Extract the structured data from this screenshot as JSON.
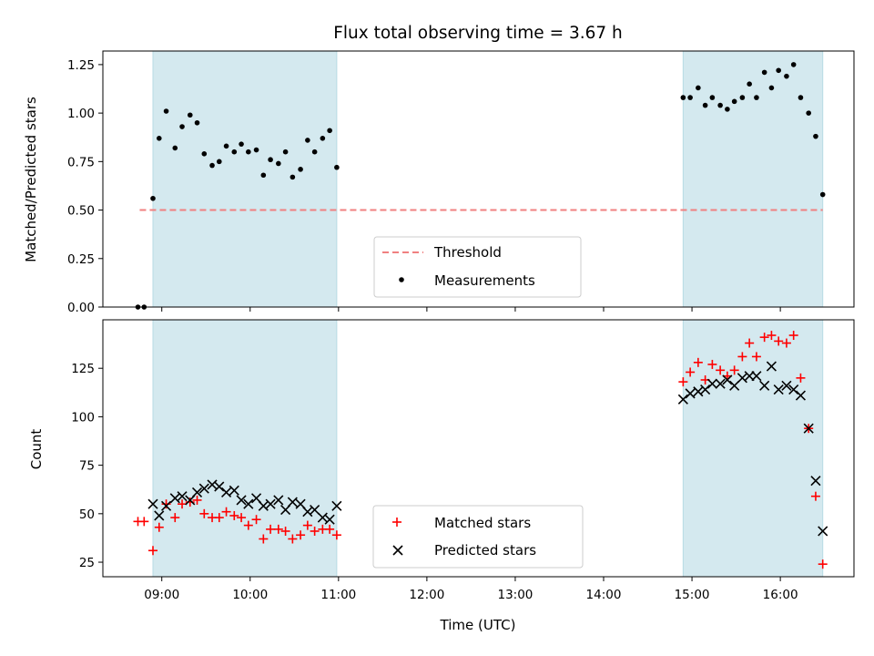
{
  "chart_data": [
    {
      "type": "scatter",
      "title": "Flux total observing time = 3.67 h",
      "xlabel": "",
      "ylabel": "Matched/Predicted stars",
      "x_unit": "hours (UTC)",
      "xlim": [
        8.3333,
        16.8333
      ],
      "ylim": [
        0.0,
        1.32
      ],
      "yticks": [
        0.0,
        0.25,
        0.5,
        0.75,
        1.0,
        1.25
      ],
      "ytick_labels": [
        "0.00",
        "0.25",
        "0.50",
        "0.75",
        "1.00",
        "1.25"
      ],
      "xticks": [
        9,
        10,
        11,
        12,
        13,
        14,
        15,
        16
      ],
      "xtick_labels": [
        "",
        "",
        "",
        "",
        "",
        "",
        "",
        ""
      ],
      "shaded_spans": [
        [
          8.9,
          10.98
        ],
        [
          14.9,
          16.48
        ]
      ],
      "shade_color": "#d4e9ef",
      "threshold": {
        "name": "Threshold",
        "value": 0.5,
        "x_range": [
          8.75,
          16.48
        ],
        "color": "#f08080",
        "style": "dashed"
      },
      "series": [
        {
          "name": "Measurements",
          "marker": "dot",
          "color": "#000000",
          "points": [
            [
              8.73,
              0.0
            ],
            [
              8.8,
              0.0
            ],
            [
              8.9,
              0.56
            ],
            [
              8.97,
              0.87
            ],
            [
              9.05,
              1.01
            ],
            [
              9.15,
              0.82
            ],
            [
              9.23,
              0.93
            ],
            [
              9.32,
              0.99
            ],
            [
              9.4,
              0.95
            ],
            [
              9.48,
              0.79
            ],
            [
              9.57,
              0.73
            ],
            [
              9.65,
              0.75
            ],
            [
              9.73,
              0.83
            ],
            [
              9.82,
              0.8
            ],
            [
              9.9,
              0.84
            ],
            [
              9.98,
              0.8
            ],
            [
              10.07,
              0.81
            ],
            [
              10.15,
              0.68
            ],
            [
              10.23,
              0.76
            ],
            [
              10.32,
              0.74
            ],
            [
              10.4,
              0.8
            ],
            [
              10.48,
              0.67
            ],
            [
              10.57,
              0.71
            ],
            [
              10.65,
              0.86
            ],
            [
              10.73,
              0.8
            ],
            [
              10.82,
              0.87
            ],
            [
              10.9,
              0.91
            ],
            [
              10.98,
              0.72
            ],
            [
              14.9,
              1.08
            ],
            [
              14.98,
              1.08
            ],
            [
              15.07,
              1.13
            ],
            [
              15.15,
              1.04
            ],
            [
              15.23,
              1.08
            ],
            [
              15.32,
              1.04
            ],
            [
              15.4,
              1.02
            ],
            [
              15.48,
              1.06
            ],
            [
              15.57,
              1.08
            ],
            [
              15.65,
              1.15
            ],
            [
              15.73,
              1.08
            ],
            [
              15.82,
              1.21
            ],
            [
              15.9,
              1.13
            ],
            [
              15.98,
              1.22
            ],
            [
              16.07,
              1.19
            ],
            [
              16.15,
              1.25
            ],
            [
              16.23,
              1.08
            ],
            [
              16.32,
              1.0
            ],
            [
              16.4,
              0.88
            ],
            [
              16.48,
              0.58
            ]
          ]
        }
      ],
      "legend": {
        "placement": "lower center",
        "entries": [
          "Threshold",
          "Measurements"
        ]
      }
    },
    {
      "type": "scatter",
      "title": "",
      "xlabel": "Time (UTC)",
      "ylabel": "Count",
      "x_unit": "hours (UTC)",
      "xlim": [
        8.3333,
        16.8333
      ],
      "ylim": [
        17.5,
        150.0
      ],
      "yticks": [
        25,
        50,
        75,
        100,
        125
      ],
      "ytick_labels": [
        "25",
        "50",
        "75",
        "100",
        "125"
      ],
      "xticks": [
        9,
        10,
        11,
        12,
        13,
        14,
        15,
        16
      ],
      "xtick_labels": [
        "09:00",
        "10:00",
        "11:00",
        "12:00",
        "13:00",
        "14:00",
        "15:00",
        "16:00"
      ],
      "shaded_spans": [
        [
          8.9,
          10.98
        ],
        [
          14.9,
          16.48
        ]
      ],
      "shade_color": "#d4e9ef",
      "series": [
        {
          "name": "Matched stars",
          "marker": "plus",
          "color": "#ff0000",
          "points": [
            [
              8.73,
              46
            ],
            [
              8.8,
              46
            ],
            [
              8.9,
              31
            ],
            [
              8.97,
              43
            ],
            [
              9.05,
              55
            ],
            [
              9.15,
              48
            ],
            [
              9.23,
              55
            ],
            [
              9.32,
              56
            ],
            [
              9.4,
              57
            ],
            [
              9.48,
              50
            ],
            [
              9.57,
              48
            ],
            [
              9.65,
              48
            ],
            [
              9.73,
              51
            ],
            [
              9.82,
              49
            ],
            [
              9.9,
              48
            ],
            [
              9.98,
              44
            ],
            [
              10.07,
              47
            ],
            [
              10.15,
              37
            ],
            [
              10.23,
              42
            ],
            [
              10.32,
              42
            ],
            [
              10.4,
              41
            ],
            [
              10.48,
              37
            ],
            [
              10.57,
              39
            ],
            [
              10.65,
              44
            ],
            [
              10.73,
              41
            ],
            [
              10.82,
              42
            ],
            [
              10.9,
              42
            ],
            [
              10.98,
              39
            ],
            [
              14.9,
              118
            ],
            [
              14.98,
              123
            ],
            [
              15.07,
              128
            ],
            [
              15.15,
              119
            ],
            [
              15.23,
              127
            ],
            [
              15.32,
              124
            ],
            [
              15.4,
              121
            ],
            [
              15.48,
              124
            ],
            [
              15.57,
              131
            ],
            [
              15.65,
              138
            ],
            [
              15.73,
              131
            ],
            [
              15.82,
              141
            ],
            [
              15.9,
              142
            ],
            [
              15.98,
              139
            ],
            [
              16.07,
              138
            ],
            [
              16.15,
              142
            ],
            [
              16.23,
              120
            ],
            [
              16.32,
              94
            ],
            [
              16.4,
              59
            ],
            [
              16.48,
              24
            ]
          ]
        },
        {
          "name": "Predicted stars",
          "marker": "x",
          "color": "#000000",
          "points": [
            [
              8.9,
              55
            ],
            [
              8.97,
              49
            ],
            [
              9.05,
              54
            ],
            [
              9.15,
              58
            ],
            [
              9.23,
              59
            ],
            [
              9.32,
              57
            ],
            [
              9.4,
              61
            ],
            [
              9.48,
              63
            ],
            [
              9.57,
              65
            ],
            [
              9.65,
              64
            ],
            [
              9.73,
              61
            ],
            [
              9.82,
              62
            ],
            [
              9.9,
              57
            ],
            [
              9.98,
              55
            ],
            [
              10.07,
              58
            ],
            [
              10.15,
              54
            ],
            [
              10.23,
              55
            ],
            [
              10.32,
              57
            ],
            [
              10.4,
              52
            ],
            [
              10.48,
              56
            ],
            [
              10.57,
              55
            ],
            [
              10.65,
              51
            ],
            [
              10.73,
              52
            ],
            [
              10.82,
              48
            ],
            [
              10.9,
              47
            ],
            [
              10.98,
              54
            ],
            [
              14.9,
              109
            ],
            [
              14.98,
              112
            ],
            [
              15.07,
              113
            ],
            [
              15.15,
              114
            ],
            [
              15.23,
              117
            ],
            [
              15.32,
              117
            ],
            [
              15.4,
              119
            ],
            [
              15.48,
              116
            ],
            [
              15.57,
              120
            ],
            [
              15.65,
              121
            ],
            [
              15.73,
              121
            ],
            [
              15.82,
              116
            ],
            [
              15.9,
              126
            ],
            [
              15.98,
              114
            ],
            [
              16.07,
              116
            ],
            [
              16.15,
              114
            ],
            [
              16.23,
              111
            ],
            [
              16.32,
              94
            ],
            [
              16.4,
              67
            ],
            [
              16.48,
              41
            ]
          ]
        }
      ],
      "legend": {
        "placement": "lower center",
        "entries": [
          "Matched stars",
          "Predicted stars"
        ]
      }
    }
  ]
}
